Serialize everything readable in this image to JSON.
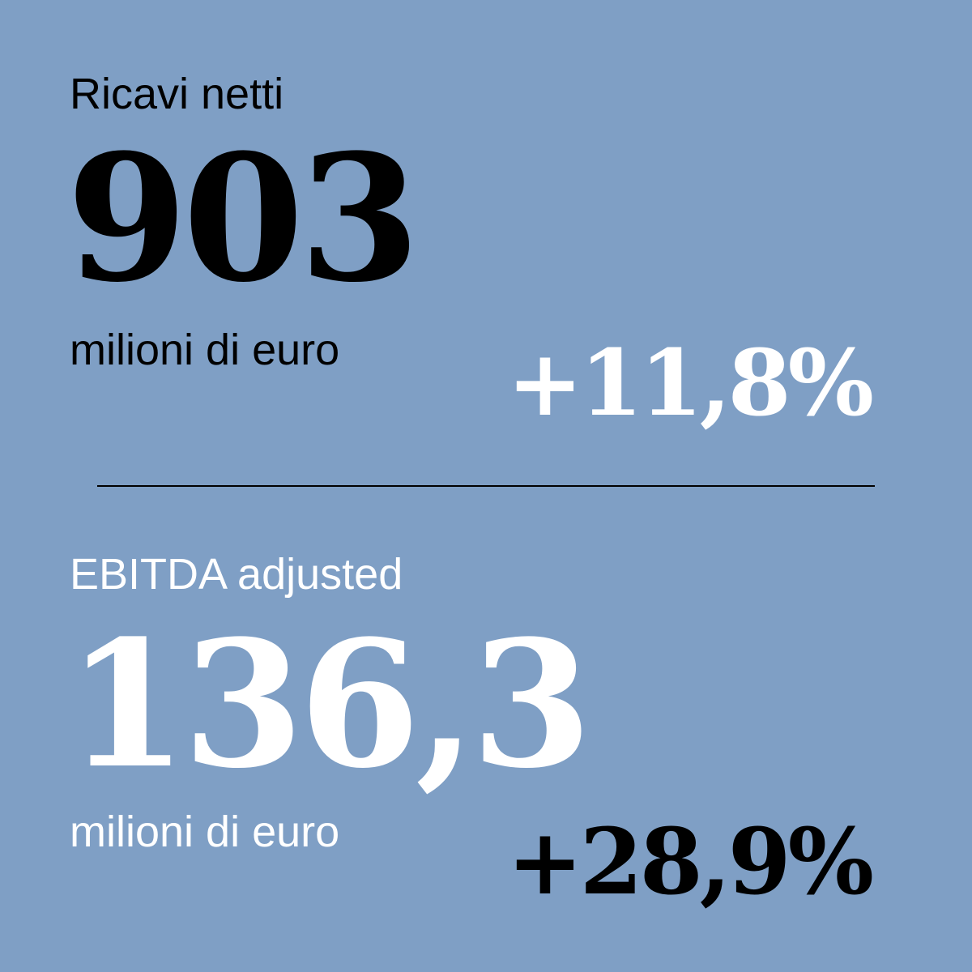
{
  "sections": [
    {
      "label": "Ricavi netti",
      "value": "903",
      "unit": "milioni di euro",
      "change": "+11,8%"
    },
    {
      "label": "EBITDA adjusted",
      "value": "136,3",
      "unit": "milioni di euro",
      "change": "+28,9%"
    }
  ]
}
